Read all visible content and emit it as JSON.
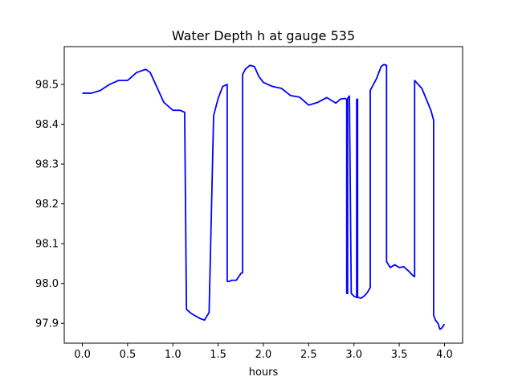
{
  "chart_data": {
    "type": "line",
    "title": "Water Depth h at gauge 535",
    "xlabel": "hours",
    "ylabel": "",
    "xlim": [
      -0.2,
      4.2
    ],
    "ylim": [
      97.85,
      98.595
    ],
    "xticks": [
      0.0,
      0.5,
      1.0,
      1.5,
      2.0,
      2.5,
      3.0,
      3.5,
      4.0
    ],
    "xtick_labels": [
      "0.0",
      "0.5",
      "1.0",
      "1.5",
      "2.0",
      "2.5",
      "3.0",
      "3.5",
      "4.0"
    ],
    "yticks": [
      97.9,
      98.0,
      98.1,
      98.2,
      98.3,
      98.4,
      98.5
    ],
    "ytick_labels": [
      "97.9",
      "98.0",
      "98.1",
      "98.2",
      "98.3",
      "98.4",
      "98.5"
    ],
    "grid": false,
    "legend": "none",
    "series": [
      {
        "color": "#0000ff",
        "x": [
          0.0,
          0.1,
          0.2,
          0.3,
          0.4,
          0.5,
          0.6,
          0.7,
          0.75,
          0.8,
          0.9,
          1.0,
          1.08,
          1.13,
          1.15,
          1.2,
          1.3,
          1.35,
          1.38,
          1.4,
          1.45,
          1.5,
          1.55,
          1.6,
          1.6,
          1.62,
          1.65,
          1.7,
          1.75,
          1.77,
          1.77,
          1.8,
          1.85,
          1.9,
          1.95,
          2.0,
          2.1,
          2.2,
          2.3,
          2.4,
          2.45,
          2.5,
          2.6,
          2.7,
          2.8,
          2.85,
          2.9,
          2.92,
          2.92,
          2.93,
          2.93,
          2.95,
          2.95,
          2.97,
          3.0,
          3.03,
          3.03,
          3.04,
          3.04,
          3.08,
          3.12,
          3.15,
          3.18,
          3.18,
          3.25,
          3.3,
          3.33,
          3.36,
          3.36,
          3.4,
          3.45,
          3.5,
          3.55,
          3.6,
          3.65,
          3.67,
          3.67,
          3.75,
          3.85,
          3.88,
          3.88,
          3.9,
          3.93,
          3.95,
          3.97,
          4.0
        ],
        "y": [
          98.478,
          98.478,
          98.485,
          98.5,
          98.51,
          98.51,
          98.53,
          98.538,
          98.53,
          98.505,
          98.455,
          98.435,
          98.435,
          98.43,
          97.935,
          97.925,
          97.912,
          97.908,
          97.92,
          97.927,
          98.422,
          98.465,
          98.495,
          98.5,
          98.005,
          98.005,
          98.008,
          98.008,
          98.025,
          98.027,
          98.525,
          98.538,
          98.548,
          98.545,
          98.52,
          98.505,
          98.495,
          98.49,
          98.472,
          98.468,
          98.458,
          98.448,
          98.455,
          98.467,
          98.453,
          98.463,
          98.465,
          98.462,
          97.975,
          97.975,
          98.465,
          98.471,
          98.47,
          97.975,
          97.968,
          97.965,
          98.462,
          98.463,
          97.965,
          97.963,
          97.97,
          97.978,
          97.99,
          98.485,
          98.515,
          98.545,
          98.55,
          98.548,
          98.055,
          98.04,
          98.047,
          98.04,
          98.042,
          98.032,
          98.02,
          98.017,
          98.51,
          98.49,
          98.435,
          98.41,
          97.92,
          97.908,
          97.899,
          97.885,
          97.888,
          97.898
        ]
      }
    ]
  }
}
